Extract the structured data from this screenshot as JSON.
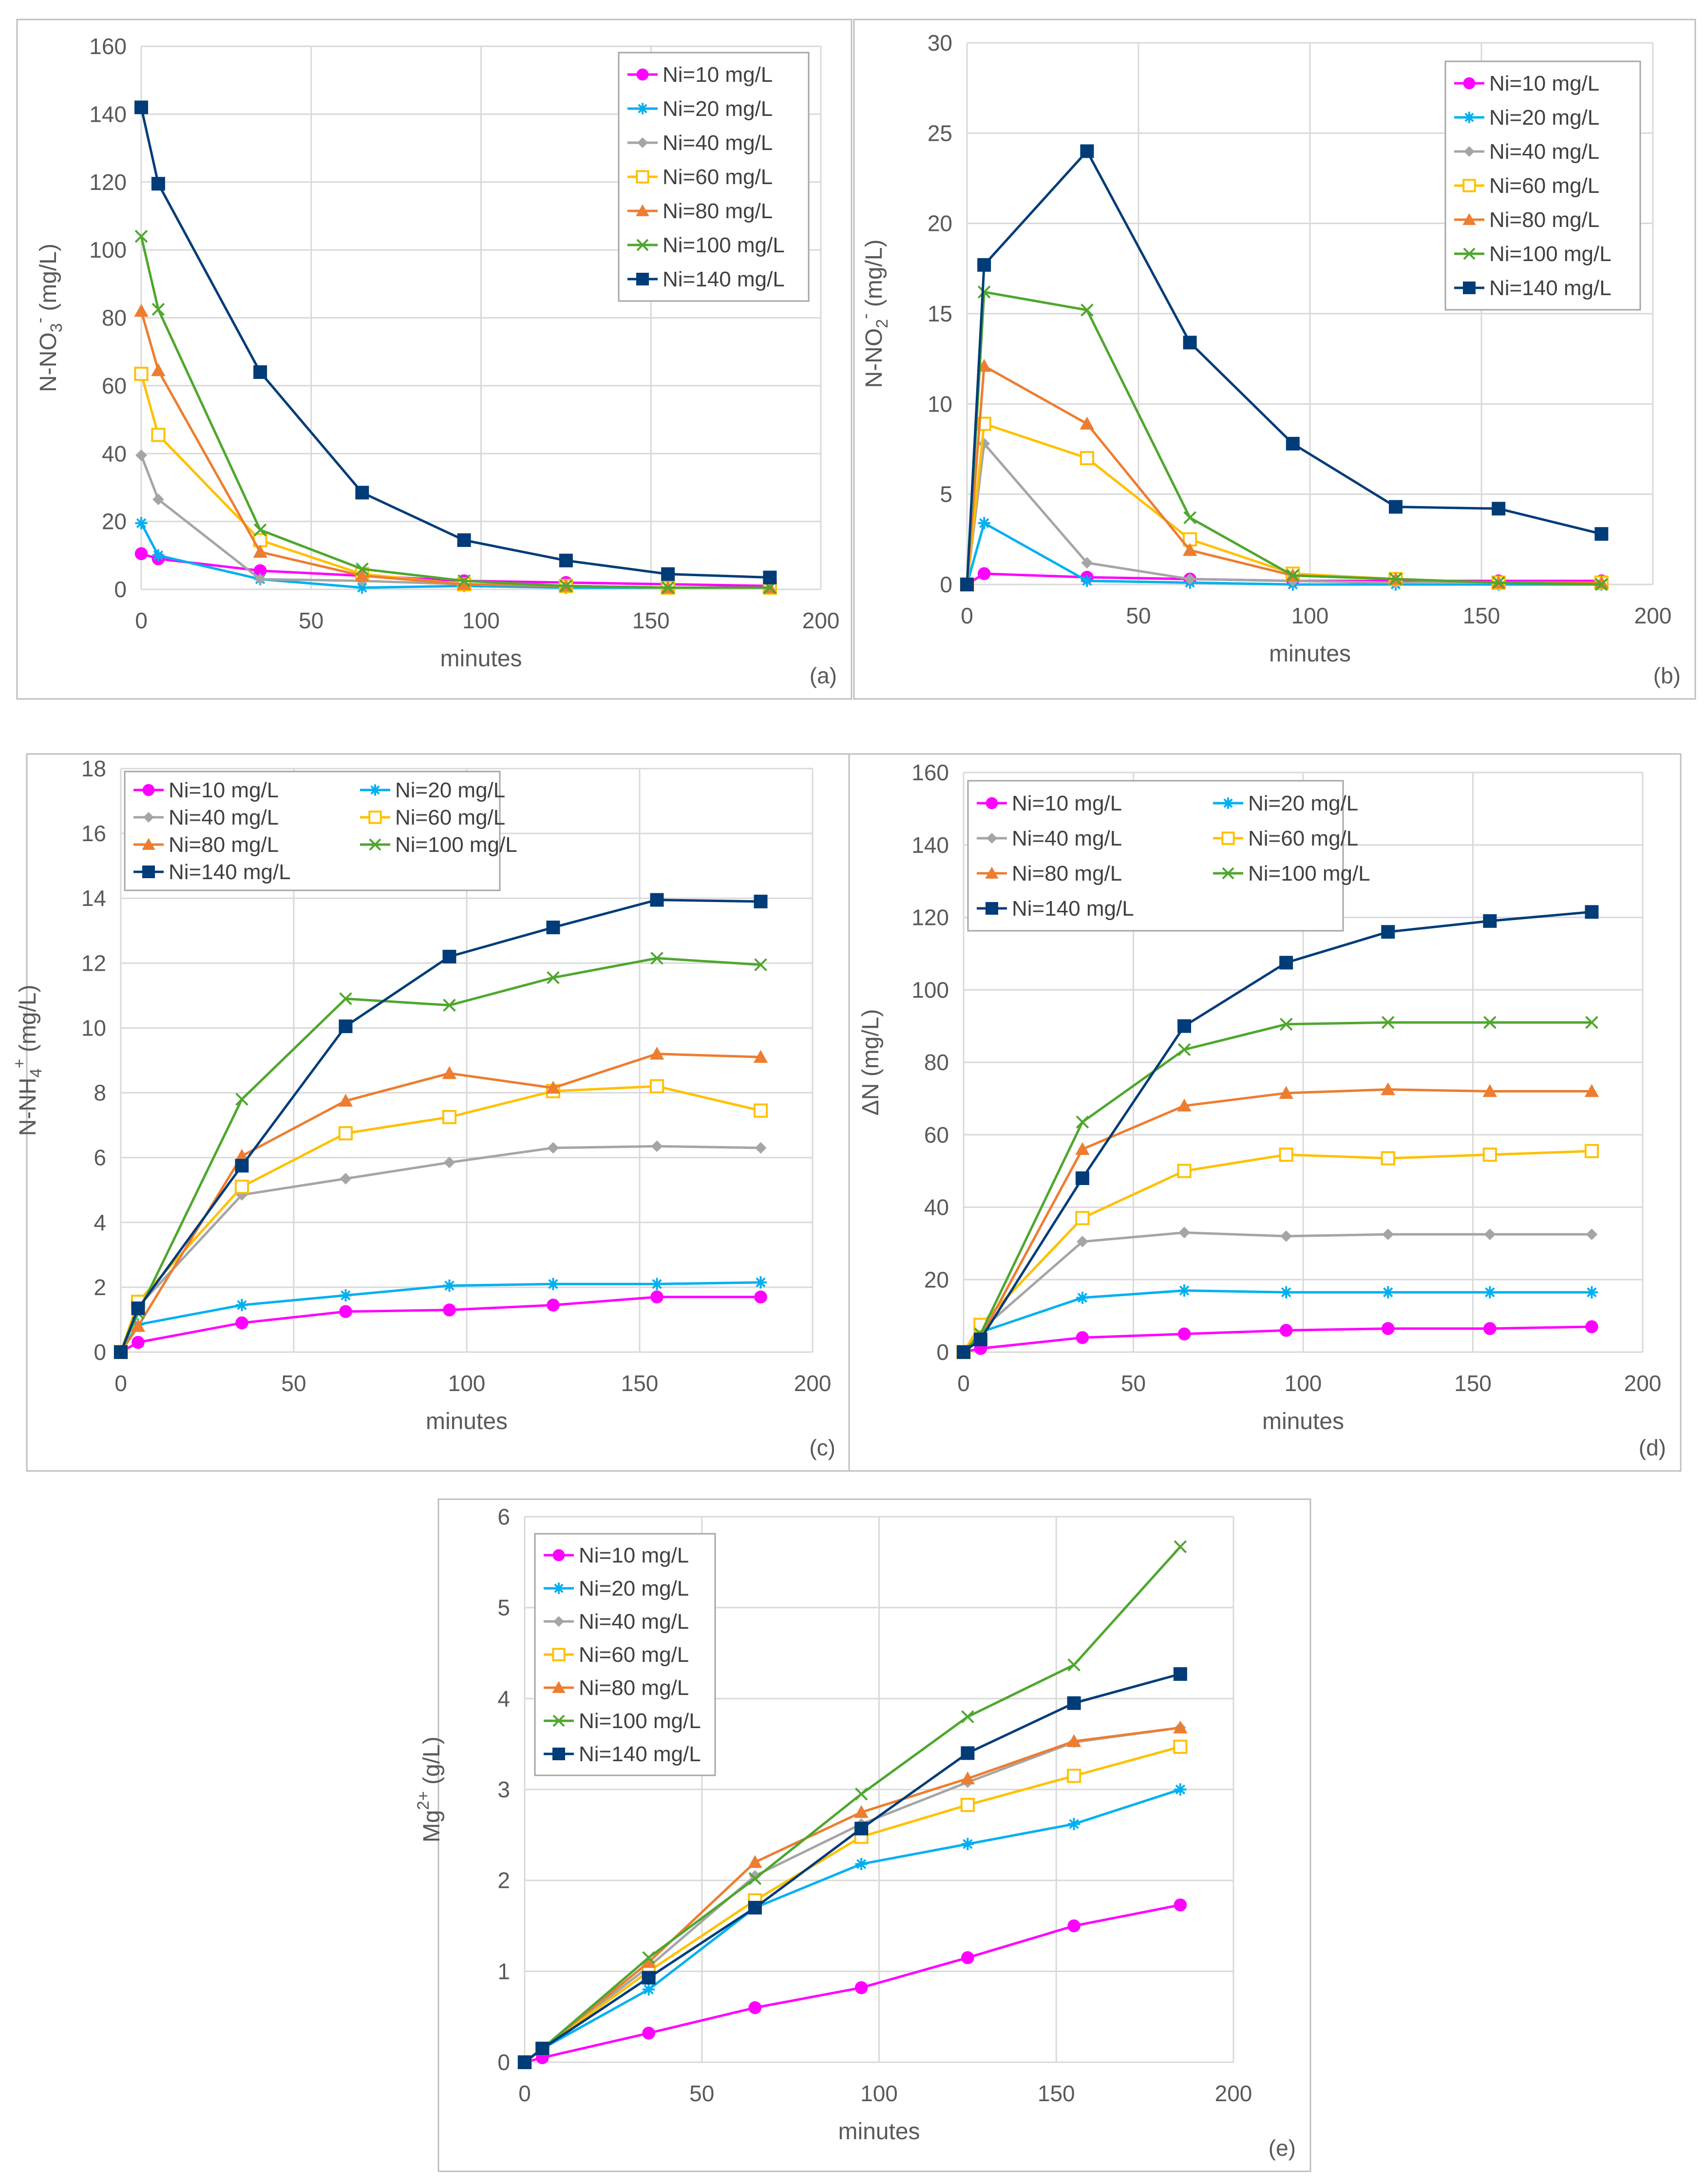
{
  "colors": {
    "ni10": "#ff00ff",
    "ni20": "#00b0f0",
    "ni40": "#a5a5a5",
    "ni60": "#ffc000",
    "ni80": "#ed7d31",
    "ni100": "#4ea72e",
    "ni140": "#003c78",
    "grid": "#d9d9d9",
    "frame": "#bfbfbf",
    "axis_text": "#595959"
  },
  "series_meta": [
    {
      "key": "ni10",
      "name": "Ni=10 mg/L",
      "marker": "circle"
    },
    {
      "key": "ni20",
      "name": "Ni=20 mg/L",
      "marker": "star"
    },
    {
      "key": "ni40",
      "name": "Ni=40 mg/L",
      "marker": "diamond"
    },
    {
      "key": "ni60",
      "name": "Ni=60 mg/L",
      "marker": "square-open"
    },
    {
      "key": "ni80",
      "name": "Ni=80 mg/L",
      "marker": "triangle"
    },
    {
      "key": "ni100",
      "name": "Ni=100 mg/L",
      "marker": "x"
    },
    {
      "key": "ni140",
      "name": "Ni=140 mg/L",
      "marker": "square"
    }
  ],
  "chart_data": [
    {
      "id": "a",
      "type": "line",
      "panel_label": "(a)",
      "xlabel": "minutes",
      "ylabel_main": "N-NO",
      "ylabel_sub": "3",
      "ylabel_sup": "-",
      "ylabel_tail": " (mg/L)",
      "x": [
        0,
        5,
        35,
        65,
        95,
        125,
        155,
        185
      ],
      "xlim": [
        0,
        200
      ],
      "xticks": [
        0,
        50,
        100,
        150,
        200
      ],
      "ylim": [
        0,
        160
      ],
      "yticks": [
        0,
        20,
        40,
        60,
        80,
        100,
        120,
        140,
        160
      ],
      "legend_position": "top-right",
      "legend_columns": 1,
      "series": [
        {
          "name": "Ni=10 mg/L",
          "values": [
            10.5,
            9.0,
            5.5,
            4.0,
            2.5,
            2.0,
            1.5,
            1.0
          ]
        },
        {
          "name": "Ni=20 mg/L",
          "values": [
            19.5,
            10.0,
            3.0,
            0.5,
            1.0,
            0.5,
            0.5,
            0.5
          ]
        },
        {
          "name": "Ni=40 mg/L",
          "values": [
            39.5,
            26.5,
            3.0,
            2.5,
            1.5,
            1.0,
            0.5,
            0.5
          ]
        },
        {
          "name": "Ni=60 mg/L",
          "values": [
            63.5,
            45.5,
            14.5,
            4.5,
            1.5,
            1.0,
            0.5,
            0.5
          ]
        },
        {
          "name": "Ni=80 mg/L",
          "values": [
            82.0,
            64.5,
            11.0,
            4.0,
            1.5,
            1.0,
            0.5,
            0.5
          ]
        },
        {
          "name": "Ni=100 mg/L",
          "values": [
            104.0,
            82.5,
            17.5,
            6.0,
            2.5,
            1.0,
            0.5,
            0.5
          ]
        },
        {
          "name": "Ni=140 mg/L",
          "values": [
            142.0,
            119.5,
            64.0,
            28.5,
            14.5,
            8.5,
            4.5,
            3.5
          ]
        }
      ]
    },
    {
      "id": "b",
      "type": "line",
      "panel_label": "(b)",
      "xlabel": "minutes",
      "ylabel_main": "N-NO",
      "ylabel_sub": "2",
      "ylabel_sup": "-",
      "ylabel_tail": " (mg/L)",
      "x": [
        0,
        5,
        35,
        65,
        95,
        125,
        155,
        185
      ],
      "xlim": [
        0,
        200
      ],
      "xticks": [
        0,
        50,
        100,
        150,
        200
      ],
      "ylim": [
        0,
        30
      ],
      "yticks": [
        0,
        5,
        10,
        15,
        20,
        25,
        30
      ],
      "legend_position": "top-right",
      "legend_columns": 1,
      "series": [
        {
          "name": "Ni=10 mg/L",
          "values": [
            0,
            0.6,
            0.4,
            0.3,
            0.2,
            0.2,
            0.2,
            0.2
          ]
        },
        {
          "name": "Ni=20 mg/L",
          "values": [
            0,
            3.4,
            0.2,
            0.1,
            0.0,
            0.0,
            0.0,
            0.0
          ]
        },
        {
          "name": "Ni=40 mg/L",
          "values": [
            0,
            7.8,
            1.2,
            0.3,
            0.2,
            0.1,
            0.1,
            0.1
          ]
        },
        {
          "name": "Ni=60 mg/L",
          "values": [
            0,
            8.9,
            7.0,
            2.5,
            0.6,
            0.3,
            0.1,
            0.1
          ]
        },
        {
          "name": "Ni=80 mg/L",
          "values": [
            0,
            12.1,
            8.9,
            1.9,
            0.5,
            0.3,
            0.1,
            0.1
          ]
        },
        {
          "name": "Ni=100 mg/L",
          "values": [
            0,
            16.2,
            15.2,
            3.7,
            0.5,
            0.3,
            0.1,
            0.0
          ]
        },
        {
          "name": "Ni=140 mg/L",
          "values": [
            0,
            17.7,
            24.0,
            13.4,
            7.8,
            4.3,
            4.2,
            2.8
          ]
        }
      ]
    },
    {
      "id": "c",
      "type": "line",
      "panel_label": "(c)",
      "xlabel": "minutes",
      "ylabel_main": "N-NH",
      "ylabel_sub": "4",
      "ylabel_sup": "+",
      "ylabel_tail": " (mg/L)",
      "x": [
        0,
        5,
        35,
        65,
        95,
        125,
        155,
        185
      ],
      "xlim": [
        0,
        200
      ],
      "xticks": [
        0,
        50,
        100,
        150,
        200
      ],
      "ylim": [
        0,
        18
      ],
      "yticks": [
        0,
        2,
        4,
        6,
        8,
        10,
        12,
        14,
        16,
        18
      ],
      "legend_position": "top-left",
      "legend_columns": 2,
      "series": [
        {
          "name": "Ni=10 mg/L",
          "values": [
            0,
            0.3,
            0.9,
            1.25,
            1.3,
            1.45,
            1.7,
            1.7
          ]
        },
        {
          "name": "Ni=20 mg/L",
          "values": [
            0,
            0.85,
            1.45,
            1.75,
            2.05,
            2.1,
            2.1,
            2.15
          ]
        },
        {
          "name": "Ni=40 mg/L",
          "values": [
            0,
            1.4,
            4.85,
            5.35,
            5.85,
            6.3,
            6.35,
            6.3
          ]
        },
        {
          "name": "Ni=60 mg/L",
          "values": [
            0,
            1.55,
            5.1,
            6.75,
            7.25,
            8.05,
            8.2,
            7.45
          ]
        },
        {
          "name": "Ni=80 mg/L",
          "values": [
            0,
            0.8,
            6.05,
            7.75,
            8.6,
            8.15,
            9.2,
            9.1
          ]
        },
        {
          "name": "Ni=100 mg/L",
          "values": [
            0,
            1.2,
            7.8,
            10.9,
            10.7,
            11.55,
            12.15,
            11.95
          ]
        },
        {
          "name": "Ni=140 mg/L",
          "values": [
            0,
            1.35,
            5.75,
            10.05,
            12.2,
            13.1,
            13.95,
            13.9
          ]
        }
      ]
    },
    {
      "id": "d",
      "type": "line",
      "panel_label": "(d)",
      "xlabel": "minutes",
      "ylabel_main": "ΔN (mg/L)",
      "ylabel_sub": "",
      "ylabel_sup": "",
      "ylabel_tail": "",
      "x": [
        0,
        5,
        35,
        65,
        95,
        125,
        155,
        185
      ],
      "xlim": [
        0,
        200
      ],
      "xticks": [
        0,
        50,
        100,
        150,
        200
      ],
      "ylim": [
        0,
        160
      ],
      "yticks": [
        0,
        20,
        40,
        60,
        80,
        100,
        120,
        140,
        160
      ],
      "legend_position": "top-left",
      "legend_columns": 2,
      "series": [
        {
          "name": "Ni=10 mg/L",
          "values": [
            0,
            1.0,
            4.0,
            5.0,
            6.0,
            6.5,
            6.5,
            7.0
          ]
        },
        {
          "name": "Ni=20 mg/L",
          "values": [
            0,
            5.5,
            15.0,
            17.0,
            16.5,
            16.5,
            16.5,
            16.5
          ]
        },
        {
          "name": "Ni=40 mg/L",
          "values": [
            0,
            6.0,
            30.5,
            33.0,
            32.0,
            32.5,
            32.5,
            32.5
          ]
        },
        {
          "name": "Ni=60 mg/L",
          "values": [
            0,
            7.5,
            37.0,
            50.0,
            54.5,
            53.5,
            54.5,
            55.5
          ]
        },
        {
          "name": "Ni=80 mg/L",
          "values": [
            0,
            4.0,
            56.0,
            68.0,
            71.5,
            72.5,
            72.0,
            72.0
          ]
        },
        {
          "name": "Ni=100 mg/L",
          "values": [
            0,
            5.0,
            63.5,
            83.5,
            90.5,
            91.0,
            91.0,
            91.0
          ]
        },
        {
          "name": "Ni=140 mg/L",
          "values": [
            0,
            3.5,
            48.0,
            90.0,
            107.5,
            116.0,
            119.0,
            121.5
          ]
        }
      ]
    },
    {
      "id": "e",
      "type": "line",
      "panel_label": "(e)",
      "xlabel": "minutes",
      "ylabel_main": "Mg",
      "ylabel_sub": "",
      "ylabel_sup": "2+",
      "ylabel_tail": " (g/L)",
      "x": [
        0,
        5,
        35,
        65,
        95,
        125,
        155,
        185
      ],
      "xlim": [
        0,
        200
      ],
      "xticks": [
        0,
        50,
        100,
        150,
        200
      ],
      "ylim": [
        0,
        6
      ],
      "yticks": [
        0,
        1,
        2,
        3,
        4,
        5,
        6
      ],
      "legend_position": "top-left",
      "legend_columns": 1,
      "series": [
        {
          "name": "Ni=10 mg/L",
          "values": [
            0,
            0.05,
            0.32,
            0.6,
            0.82,
            1.15,
            1.5,
            1.73
          ]
        },
        {
          "name": "Ni=20 mg/L",
          "values": [
            0,
            0.15,
            0.8,
            1.7,
            2.18,
            2.4,
            2.62,
            3.0
          ]
        },
        {
          "name": "Ni=40 mg/L",
          "values": [
            0,
            0.15,
            1.05,
            2.05,
            2.62,
            3.08,
            3.52,
            3.68
          ]
        },
        {
          "name": "Ni=60 mg/L",
          "values": [
            0,
            0.15,
            1.0,
            1.78,
            2.48,
            2.83,
            3.15,
            3.47
          ]
        },
        {
          "name": "Ni=80 mg/L",
          "values": [
            0,
            0.15,
            1.1,
            2.2,
            2.75,
            3.12,
            3.53,
            3.68
          ]
        },
        {
          "name": "Ni=100 mg/L",
          "values": [
            0,
            0.15,
            1.15,
            2.02,
            2.95,
            3.8,
            4.37,
            5.67
          ]
        },
        {
          "name": "Ni=140 mg/L",
          "values": [
            0,
            0.15,
            0.93,
            1.7,
            2.57,
            3.4,
            3.95,
            4.27
          ]
        }
      ]
    }
  ]
}
